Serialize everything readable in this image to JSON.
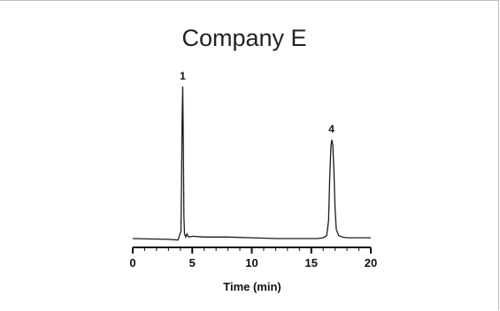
{
  "chart_data": {
    "type": "line",
    "title": "Company E",
    "xlabel": "Time (min)",
    "ylabel": "",
    "xlim": [
      0,
      20
    ],
    "x_ticks": [
      0,
      5,
      10,
      15,
      20
    ],
    "grid": false,
    "peak_labels": [
      {
        "label": "1",
        "x": 4.2
      },
      {
        "label": "4",
        "x": 16.7
      }
    ],
    "series": [
      {
        "x": [
          0,
          3.0,
          3.8,
          4.05,
          4.1,
          4.15,
          4.2,
          4.25,
          4.3,
          4.35,
          4.45,
          4.55,
          4.7,
          5.0,
          6,
          8,
          10,
          12,
          14,
          15.5,
          16.0,
          16.3,
          16.45,
          16.55,
          16.65,
          16.72,
          16.8,
          16.9,
          17.0,
          17.1,
          17.3,
          17.6,
          18,
          19,
          20
        ],
        "values": [
          0.0,
          -0.005,
          -0.01,
          0.05,
          0.35,
          0.78,
          1.0,
          0.6,
          0.15,
          0.03,
          0.01,
          0.03,
          0.01,
          0.015,
          0.01,
          0.01,
          0.005,
          0.0,
          0.0,
          0.0,
          0.005,
          0.02,
          0.12,
          0.4,
          0.6,
          0.65,
          0.62,
          0.45,
          0.2,
          0.06,
          0.02,
          0.01,
          0.005,
          0.005,
          0.005
        ]
      }
    ]
  }
}
